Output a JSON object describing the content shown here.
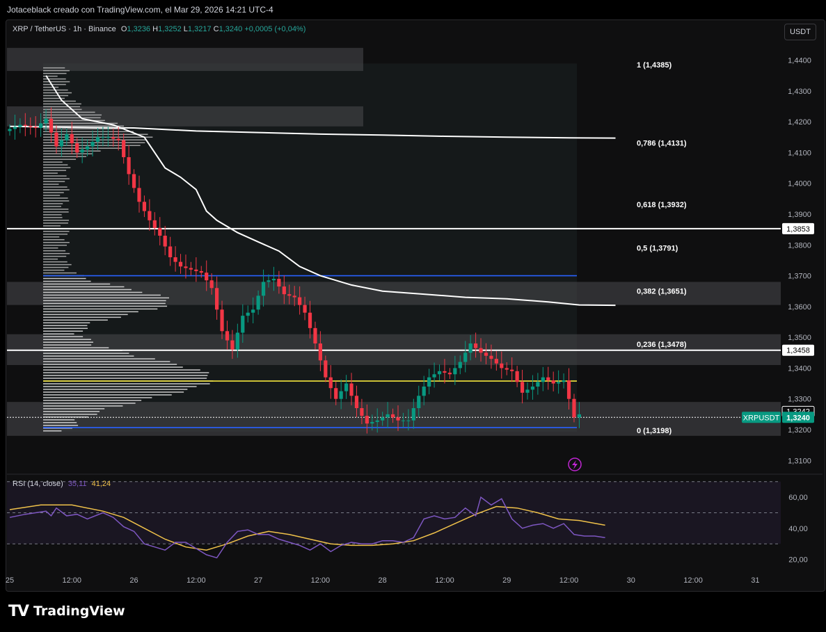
{
  "header": {
    "credit": "Jotaceblack creado con TradingView.com, el Mar 29, 2026 14:21 UTC-4"
  },
  "symbol": {
    "name": "XRP / TetherUS · 1h · Binance",
    "open_label": "O",
    "open": "1,3236",
    "high_label": "H",
    "high": "1,3252",
    "low_label": "L",
    "low": "1,3217",
    "close_label": "C",
    "close": "1,3240",
    "change": "+0,0005 (+0,04%)"
  },
  "currency_button": "USDT",
  "chart_data": {
    "type": "candlestick",
    "y_range": [
      1.306,
      1.446
    ],
    "y_ticks": [
      "1,4400",
      "1,4300",
      "1,4200",
      "1,4100",
      "1,4000",
      "1,3900",
      "1,3800",
      "1,3700",
      "1,3600",
      "1,3500",
      "1,3400",
      "1,3300",
      "1,3200",
      "1,3100"
    ],
    "y_tick_values": [
      1.44,
      1.43,
      1.42,
      1.41,
      1.4,
      1.39,
      1.38,
      1.37,
      1.36,
      1.35,
      1.34,
      1.33,
      1.32,
      1.31
    ],
    "x_ticks": [
      "25",
      "12:00",
      "26",
      "12:00",
      "27",
      "12:00",
      "28",
      "12:00",
      "29",
      "12:00",
      "30",
      "12:00",
      "31"
    ],
    "x_tick_bars": [
      0,
      12,
      24,
      36,
      48,
      60,
      72,
      84,
      96,
      108,
      120,
      132,
      144
    ],
    "bars_count": 111,
    "anchors": [
      [
        0,
        1.417
      ],
      [
        3,
        1.419
      ],
      [
        6,
        1.418
      ],
      [
        8,
        1.421
      ],
      [
        10,
        1.412
      ],
      [
        12,
        1.416
      ],
      [
        14,
        1.41
      ],
      [
        16,
        1.412
      ],
      [
        18,
        1.415
      ],
      [
        20,
        1.415
      ],
      [
        22,
        1.414
      ],
      [
        24,
        1.403
      ],
      [
        26,
        1.394
      ],
      [
        28,
        1.388
      ],
      [
        30,
        1.383
      ],
      [
        32,
        1.376
      ],
      [
        34,
        1.373
      ],
      [
        36,
        1.372
      ],
      [
        38,
        1.371
      ],
      [
        40,
        1.366
      ],
      [
        41,
        1.359
      ],
      [
        42,
        1.352
      ],
      [
        44,
        1.346
      ],
      [
        46,
        1.357
      ],
      [
        48,
        1.359
      ],
      [
        50,
        1.368
      ],
      [
        52,
        1.369
      ],
      [
        54,
        1.364
      ],
      [
        56,
        1.363
      ],
      [
        58,
        1.358
      ],
      [
        60,
        1.348
      ],
      [
        62,
        1.337
      ],
      [
        64,
        1.33
      ],
      [
        66,
        1.335
      ],
      [
        68,
        1.327
      ],
      [
        70,
        1.322
      ],
      [
        72,
        1.323
      ],
      [
        74,
        1.325
      ],
      [
        76,
        1.323
      ],
      [
        78,
        1.323
      ],
      [
        80,
        1.331
      ],
      [
        82,
        1.337
      ],
      [
        84,
        1.339
      ],
      [
        86,
        1.338
      ],
      [
        88,
        1.342
      ],
      [
        90,
        1.348
      ],
      [
        92,
        1.345
      ],
      [
        94,
        1.343
      ],
      [
        96,
        1.34
      ],
      [
        98,
        1.339
      ],
      [
        100,
        1.332
      ],
      [
        102,
        1.334
      ],
      [
        104,
        1.337
      ],
      [
        106,
        1.335
      ],
      [
        108,
        1.336
      ],
      [
        110,
        1.324
      ],
      [
        111,
        1.325
      ],
      [
        112,
        1.322
      ],
      [
        114,
        1.3224
      ],
      [
        116,
        1.3218
      ],
      [
        117,
        1.324
      ]
    ],
    "levels": [
      {
        "label": "1,3853",
        "value": 1.3853,
        "color": "#ffffff"
      },
      {
        "label": "1,3458",
        "value": 1.3458,
        "color": "#ffffff"
      }
    ],
    "horizontal_lines": [
      {
        "value": 1.37,
        "color": "#2962ff"
      },
      {
        "value": 1.3358,
        "color": "#f5e63c"
      },
      {
        "value": 1.3207,
        "color": "#2962ff"
      }
    ],
    "fibonacci": [
      {
        "label": "1 (1,4385)",
        "value": 1.4385
      },
      {
        "label": "0,786 (1,4131)",
        "value": 1.4131
      },
      {
        "label": "0,618 (1,3932)",
        "value": 1.3932
      },
      {
        "label": "0,5 (1,3791)",
        "value": 1.3791
      },
      {
        "label": "0,382 (1,3651)",
        "value": 1.3651
      },
      {
        "label": "0,236 (1,3478)",
        "value": 1.3478
      },
      {
        "label": "0 (1,3198)",
        "value": 1.3198
      }
    ],
    "zones": [
      {
        "from": 1.4365,
        "to": 1.444
      },
      {
        "from": 1.4185,
        "to": 1.425
      },
      {
        "from": 1.3605,
        "to": 1.368
      },
      {
        "from": 1.341,
        "to": 1.351
      },
      {
        "from": 1.318,
        "to": 1.329
      }
    ],
    "vwap_line": [
      [
        0,
        1.4185
      ],
      [
        12,
        1.4182
      ],
      [
        24,
        1.418
      ],
      [
        36,
        1.417
      ],
      [
        48,
        1.4165
      ],
      [
        60,
        1.416
      ],
      [
        72,
        1.4157
      ],
      [
        84,
        1.4153
      ],
      [
        96,
        1.415
      ],
      [
        108,
        1.4148
      ],
      [
        117,
        1.4147
      ]
    ],
    "anchored_line": [
      [
        7,
        1.435
      ],
      [
        10,
        1.427
      ],
      [
        14,
        1.421
      ],
      [
        20,
        1.419
      ],
      [
        26,
        1.415
      ],
      [
        28,
        1.41
      ],
      [
        30,
        1.405
      ],
      [
        33,
        1.402
      ],
      [
        36,
        1.398
      ],
      [
        38,
        1.391
      ],
      [
        40,
        1.388
      ],
      [
        44,
        1.384
      ],
      [
        48,
        1.381
      ],
      [
        52,
        1.378
      ],
      [
        56,
        1.373
      ],
      [
        60,
        1.37
      ],
      [
        66,
        1.367
      ],
      [
        72,
        1.365
      ],
      [
        80,
        1.364
      ],
      [
        88,
        1.363
      ],
      [
        96,
        1.3625
      ],
      [
        104,
        1.3615
      ],
      [
        110,
        1.3605
      ],
      [
        117,
        1.3604
      ]
    ],
    "current_price": {
      "label": "XRPUSDT",
      "value_label": "1,3240",
      "value": 1.324,
      "color": "#089981"
    },
    "last_marker": {
      "label": "1,3242",
      "value": 1.3242
    }
  },
  "rsi": {
    "title": "RSI (14, close)",
    "value": "35,11",
    "ma_value": "41,24",
    "y_range": [
      14,
      73
    ],
    "y_ticks": [
      "60,00",
      "40,00",
      "20,00"
    ],
    "y_tick_values": [
      60,
      40,
      20
    ],
    "bands": [
      70,
      50,
      30
    ],
    "rsi_line": [
      [
        0,
        47
      ],
      [
        3,
        49
      ],
      [
        5,
        50
      ],
      [
        7,
        51
      ],
      [
        8,
        48
      ],
      [
        9,
        53
      ],
      [
        11,
        48
      ],
      [
        13,
        49
      ],
      [
        15,
        46
      ],
      [
        18,
        50
      ],
      [
        20,
        47
      ],
      [
        22,
        41
      ],
      [
        24,
        38
      ],
      [
        26,
        30
      ],
      [
        28,
        28
      ],
      [
        30,
        26
      ],
      [
        32,
        31
      ],
      [
        34,
        31
      ],
      [
        36,
        27
      ],
      [
        38,
        23
      ],
      [
        40,
        21
      ],
      [
        42,
        31
      ],
      [
        44,
        38
      ],
      [
        46,
        39
      ],
      [
        48,
        36
      ],
      [
        50,
        36
      ],
      [
        52,
        33
      ],
      [
        54,
        31
      ],
      [
        56,
        29
      ],
      [
        58,
        26
      ],
      [
        60,
        30
      ],
      [
        62,
        25
      ],
      [
        64,
        29
      ],
      [
        66,
        31
      ],
      [
        68,
        30
      ],
      [
        70,
        30
      ],
      [
        72,
        32
      ],
      [
        74,
        32
      ],
      [
        76,
        31
      ],
      [
        78,
        34
      ],
      [
        80,
        46
      ],
      [
        82,
        48
      ],
      [
        84,
        46
      ],
      [
        86,
        47
      ],
      [
        88,
        53
      ],
      [
        90,
        48
      ],
      [
        91,
        60
      ],
      [
        93,
        55
      ],
      [
        95,
        59
      ],
      [
        97,
        46
      ],
      [
        99,
        40
      ],
      [
        101,
        42
      ],
      [
        103,
        43
      ],
      [
        105,
        40
      ],
      [
        107,
        43
      ],
      [
        109,
        36
      ],
      [
        111,
        35
      ],
      [
        113,
        35
      ],
      [
        115,
        34
      ]
    ],
    "rsi_ma_line": [
      [
        0,
        52
      ],
      [
        6,
        55
      ],
      [
        12,
        55
      ],
      [
        18,
        51
      ],
      [
        22,
        47
      ],
      [
        26,
        40
      ],
      [
        30,
        33
      ],
      [
        34,
        28
      ],
      [
        38,
        26
      ],
      [
        42,
        30
      ],
      [
        46,
        35
      ],
      [
        50,
        38
      ],
      [
        54,
        36
      ],
      [
        58,
        33
      ],
      [
        62,
        30
      ],
      [
        66,
        29
      ],
      [
        70,
        29
      ],
      [
        74,
        30
      ],
      [
        78,
        32
      ],
      [
        82,
        37
      ],
      [
        86,
        43
      ],
      [
        90,
        49
      ],
      [
        94,
        54
      ],
      [
        98,
        53
      ],
      [
        102,
        50
      ],
      [
        106,
        46
      ],
      [
        110,
        45
      ],
      [
        115,
        42
      ]
    ]
  },
  "brand": {
    "name": "TradingView"
  }
}
